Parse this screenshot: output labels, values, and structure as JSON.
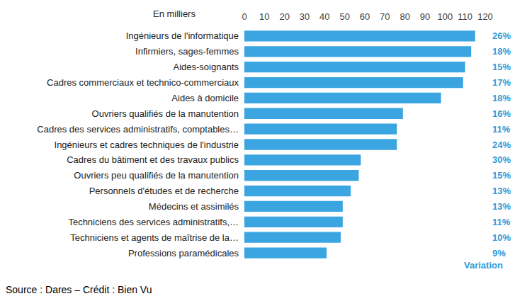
{
  "chart_data": {
    "type": "bar",
    "orientation": "horizontal",
    "x_label": "En milliers",
    "categories": [
      "Ingénieurs de l'informatique",
      "Infirmiers, sages-femmes",
      "Aides-soignants",
      "Cadres commerciaux et technico-commerciaux",
      "Aides à domicile",
      "Ouvriers qualifiés de la manutention",
      "Cadres des services administratifs, comptables…",
      "Ingénieurs et cadres techniques de l'industrie",
      "Cadres du bâtiment et des travaux publics",
      "Ouvriers peu qualifiés de la manutention",
      "Personnels d'études et de recherche",
      "Médecins et assimilés",
      "Techniciens des services administratifs,…",
      "Techniciens et agents de maîtrise de la…",
      "Professions paramédicales"
    ],
    "values": [
      115,
      113,
      110,
      109,
      98,
      79,
      76,
      76,
      58,
      57,
      53,
      49,
      49,
      48,
      41
    ],
    "color": "#3ba5e1",
    "xlim": [
      0,
      120
    ],
    "xticks": [
      0,
      10,
      20,
      30,
      40,
      50,
      60,
      70,
      80,
      90,
      100,
      110,
      120
    ],
    "grid": false,
    "variation_title": "Variation",
    "variation_labels": [
      "26%",
      "18%",
      "15%",
      "17%",
      "18%",
      "16%",
      "11%",
      "24%",
      "30%",
      "15%",
      "13%",
      "13%",
      "11%",
      "10%",
      "9%"
    ],
    "source": "Source : Dares – Crédit : Bien Vu"
  }
}
